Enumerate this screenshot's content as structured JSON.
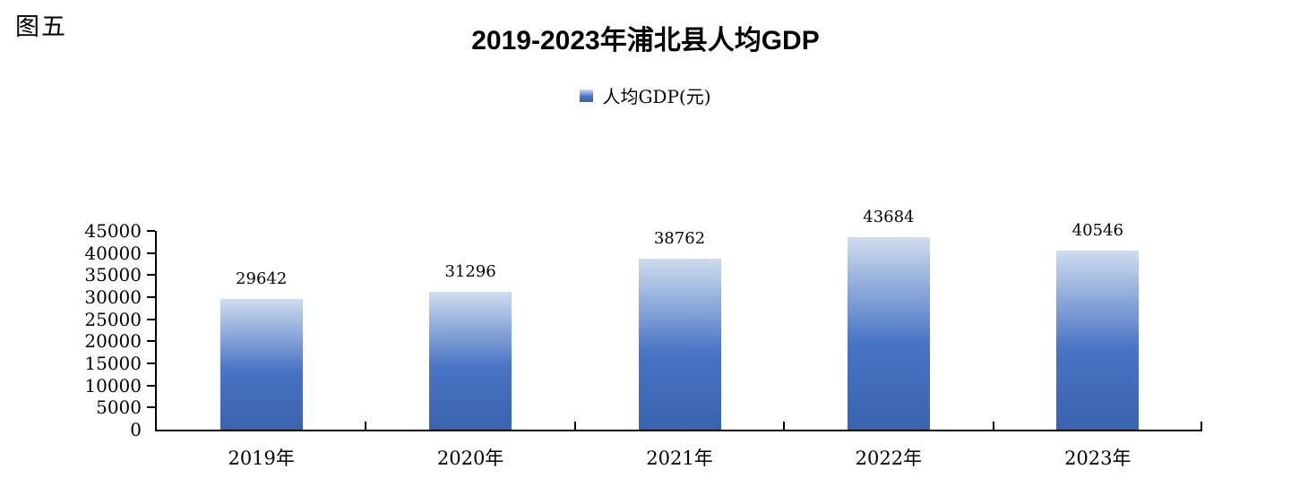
{
  "page": {
    "figure_label": "图五"
  },
  "chart_data": {
    "type": "bar",
    "title": "2019-2023年浦北县人均GDP",
    "legend_label": "人均GDP(元)",
    "legend_position": "top",
    "categories": [
      "2019年",
      "2020年",
      "2021年",
      "2022年",
      "2023年"
    ],
    "series": [
      {
        "name": "人均GDP(元)",
        "values": [
          29642,
          31296,
          38762,
          43684,
          40546
        ]
      }
    ],
    "data_labels": [
      "29642",
      "31296",
      "38762",
      "43684",
      "40546"
    ],
    "xlabel": "",
    "ylabel": "",
    "ylim": [
      0,
      45000
    ],
    "ytick_step": 5000,
    "yticks": [
      0,
      5000,
      10000,
      15000,
      20000,
      25000,
      30000,
      35000,
      40000,
      45000
    ],
    "grid": false,
    "colors": {
      "bar_gradient_top": "#cfdcee",
      "bar_gradient_mid": "#4874c5",
      "bar_gradient_bottom": "#3a63ae",
      "axis": "#000000",
      "text": "#000000"
    }
  }
}
